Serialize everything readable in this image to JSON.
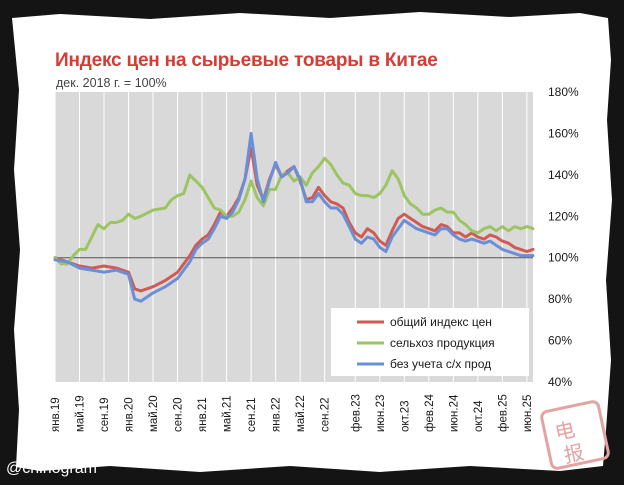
{
  "chart_data": {
    "type": "line",
    "title": "Индекс цен на сырьевые товары в Китае",
    "subtitle": "дек. 2018 г. = 100%",
    "y_ticks": [
      "40%",
      "60%",
      "80%",
      "100%",
      "120%",
      "140%",
      "160%",
      "180%"
    ],
    "ylim": [
      40,
      180
    ],
    "x_tick_labels": [
      "янв.19",
      "май.19",
      "сен.19",
      "янв.20",
      "май.20",
      "сен.20",
      "янв.21",
      "май.21",
      "сен.21",
      "янв.22",
      "май.22",
      "сен.22",
      "фев.23",
      "июн.23",
      "окт.23",
      "фев.24",
      "июн.24",
      "окт.24",
      "фев.25",
      "июн.25"
    ],
    "x_tick_months": [
      0,
      4,
      8,
      12,
      16,
      20,
      24,
      28,
      32,
      36,
      40,
      44,
      49,
      53,
      57,
      61,
      65,
      69,
      73,
      77
    ],
    "x_range_months": [
      0,
      78
    ],
    "reference_line": 100,
    "grid": true,
    "legend_position": "bottom-right",
    "series": [
      {
        "name": "общий индекс цен",
        "color": "#d05b55",
        "points": [
          [
            0,
            100
          ],
          [
            2,
            98
          ],
          [
            4,
            96
          ],
          [
            6,
            95
          ],
          [
            8,
            96
          ],
          [
            10,
            95
          ],
          [
            12,
            93
          ],
          [
            13,
            85
          ],
          [
            14,
            84
          ],
          [
            16,
            86
          ],
          [
            18,
            89
          ],
          [
            20,
            93
          ],
          [
            22,
            101
          ],
          [
            23,
            106
          ],
          [
            24,
            109
          ],
          [
            25,
            111
          ],
          [
            26,
            116
          ],
          [
            27,
            122
          ],
          [
            28,
            120
          ],
          [
            29,
            124
          ],
          [
            30,
            129
          ],
          [
            31,
            138
          ],
          [
            32,
            153
          ],
          [
            33,
            135
          ],
          [
            34,
            128
          ],
          [
            35,
            138
          ],
          [
            36,
            145
          ],
          [
            37,
            139
          ],
          [
            38,
            142
          ],
          [
            39,
            144
          ],
          [
            40,
            137
          ],
          [
            41,
            128
          ],
          [
            42,
            129
          ],
          [
            43,
            134
          ],
          [
            44,
            130
          ],
          [
            45,
            127
          ],
          [
            46,
            126
          ],
          [
            47,
            124
          ],
          [
            48,
            117
          ],
          [
            49,
            112
          ],
          [
            50,
            110
          ],
          [
            51,
            114
          ],
          [
            52,
            112
          ],
          [
            53,
            108
          ],
          [
            54,
            106
          ],
          [
            55,
            113
          ],
          [
            56,
            119
          ],
          [
            57,
            121
          ],
          [
            58,
            119
          ],
          [
            59,
            117
          ],
          [
            60,
            115
          ],
          [
            61,
            114
          ],
          [
            62,
            113
          ],
          [
            63,
            116
          ],
          [
            64,
            115
          ],
          [
            65,
            112
          ],
          [
            66,
            112
          ],
          [
            67,
            110
          ],
          [
            68,
            112
          ],
          [
            69,
            110
          ],
          [
            70,
            109
          ],
          [
            71,
            111
          ],
          [
            72,
            110
          ],
          [
            73,
            108
          ],
          [
            74,
            107
          ],
          [
            75,
            105
          ],
          [
            76,
            104
          ],
          [
            77,
            103
          ],
          [
            78,
            104
          ]
        ]
      },
      {
        "name": "сельхоз продукция",
        "color": "#9dc463",
        "points": [
          [
            0,
            100
          ],
          [
            1,
            97
          ],
          [
            2,
            97
          ],
          [
            3,
            101
          ],
          [
            4,
            104
          ],
          [
            5,
            104
          ],
          [
            6,
            110
          ],
          [
            7,
            116
          ],
          [
            8,
            114
          ],
          [
            9,
            117
          ],
          [
            10,
            117
          ],
          [
            11,
            118
          ],
          [
            12,
            121
          ],
          [
            13,
            119
          ],
          [
            14,
            120
          ],
          [
            16,
            123
          ],
          [
            18,
            124
          ],
          [
            19,
            128
          ],
          [
            20,
            130
          ],
          [
            21,
            131
          ],
          [
            22,
            140
          ],
          [
            23,
            137
          ],
          [
            24,
            134
          ],
          [
            25,
            129
          ],
          [
            26,
            124
          ],
          [
            27,
            123
          ],
          [
            28,
            120
          ],
          [
            29,
            120
          ],
          [
            30,
            122
          ],
          [
            31,
            128
          ],
          [
            32,
            137
          ],
          [
            33,
            129
          ],
          [
            34,
            125
          ],
          [
            35,
            133
          ],
          [
            36,
            133
          ],
          [
            37,
            140
          ],
          [
            38,
            141
          ],
          [
            39,
            137
          ],
          [
            40,
            139
          ],
          [
            41,
            135
          ],
          [
            42,
            141
          ],
          [
            43,
            144
          ],
          [
            44,
            148
          ],
          [
            45,
            145
          ],
          [
            46,
            140
          ],
          [
            47,
            136
          ],
          [
            48,
            135
          ],
          [
            49,
            131
          ],
          [
            50,
            130
          ],
          [
            51,
            130
          ],
          [
            52,
            129
          ],
          [
            53,
            131
          ],
          [
            54,
            135
          ],
          [
            55,
            142
          ],
          [
            56,
            138
          ],
          [
            57,
            130
          ],
          [
            58,
            126
          ],
          [
            59,
            124
          ],
          [
            60,
            121
          ],
          [
            61,
            121
          ],
          [
            62,
            123
          ],
          [
            63,
            124
          ],
          [
            64,
            122
          ],
          [
            65,
            122
          ],
          [
            66,
            118
          ],
          [
            67,
            116
          ],
          [
            68,
            113
          ],
          [
            69,
            112
          ],
          [
            70,
            114
          ],
          [
            71,
            115
          ],
          [
            72,
            113
          ],
          [
            73,
            115
          ],
          [
            74,
            113
          ],
          [
            75,
            115
          ],
          [
            76,
            114
          ],
          [
            77,
            115
          ],
          [
            78,
            114
          ]
        ]
      },
      {
        "name": "без учета с/х прод",
        "color": "#6b8fd6",
        "points": [
          [
            0,
            99
          ],
          [
            2,
            98
          ],
          [
            4,
            95
          ],
          [
            6,
            94
          ],
          [
            8,
            93
          ],
          [
            10,
            94
          ],
          [
            12,
            92
          ],
          [
            13,
            80
          ],
          [
            14,
            79
          ],
          [
            16,
            83
          ],
          [
            18,
            86
          ],
          [
            20,
            90
          ],
          [
            22,
            98
          ],
          [
            23,
            104
          ],
          [
            24,
            107
          ],
          [
            25,
            109
          ],
          [
            26,
            114
          ],
          [
            27,
            120
          ],
          [
            28,
            119
          ],
          [
            29,
            122
          ],
          [
            30,
            128
          ],
          [
            31,
            138
          ],
          [
            32,
            160
          ],
          [
            33,
            138
          ],
          [
            34,
            127
          ],
          [
            35,
            137
          ],
          [
            36,
            146
          ],
          [
            37,
            139
          ],
          [
            38,
            141
          ],
          [
            39,
            144
          ],
          [
            40,
            138
          ],
          [
            41,
            127
          ],
          [
            42,
            127
          ],
          [
            43,
            131
          ],
          [
            44,
            127
          ],
          [
            45,
            124
          ],
          [
            46,
            124
          ],
          [
            47,
            121
          ],
          [
            48,
            115
          ],
          [
            49,
            109
          ],
          [
            50,
            107
          ],
          [
            51,
            110
          ],
          [
            52,
            109
          ],
          [
            53,
            105
          ],
          [
            54,
            103
          ],
          [
            55,
            110
          ],
          [
            56,
            114
          ],
          [
            57,
            118
          ],
          [
            58,
            116
          ],
          [
            59,
            114
          ],
          [
            60,
            113
          ],
          [
            61,
            112
          ],
          [
            62,
            111
          ],
          [
            63,
            114
          ],
          [
            64,
            114
          ],
          [
            65,
            111
          ],
          [
            66,
            109
          ],
          [
            67,
            108
          ],
          [
            68,
            109
          ],
          [
            69,
            108
          ],
          [
            70,
            107
          ],
          [
            71,
            108
          ],
          [
            72,
            106
          ],
          [
            73,
            104
          ],
          [
            74,
            103
          ],
          [
            75,
            102
          ],
          [
            76,
            101
          ],
          [
            77,
            101
          ],
          [
            78,
            101
          ]
        ]
      }
    ]
  },
  "watermark": "@chinogram",
  "stamp_glyphs": [
    "电",
    "报"
  ]
}
